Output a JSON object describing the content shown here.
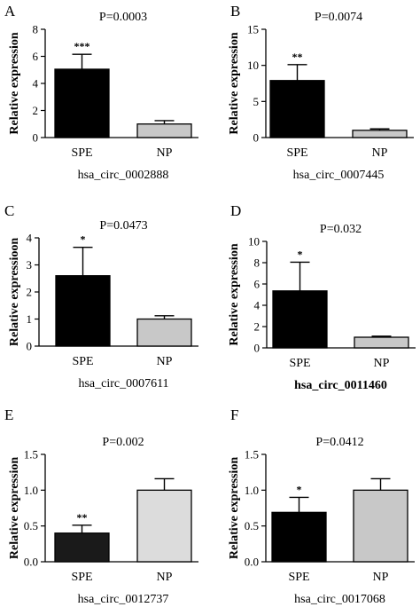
{
  "chart_data": [
    {
      "type": "bar",
      "panel": "A",
      "title": "P=0.0003",
      "ylabel": "Relative expression",
      "xlabel": "hsa_circ_0002888",
      "categories": [
        "SPE",
        "NP"
      ],
      "values": [
        5.05,
        1.0
      ],
      "errors": [
        1.1,
        0.25
      ],
      "significance": [
        "***",
        ""
      ],
      "ylim": [
        0,
        8
      ],
      "yticks": [
        "0",
        "2",
        "4",
        "6",
        "8"
      ],
      "bar_colors": [
        "#000000",
        "#c8c8c8"
      ]
    },
    {
      "type": "bar",
      "panel": "B",
      "title": "P=0.0074",
      "ylabel": "Relative expression",
      "xlabel": "hsa_circ_0007445",
      "categories": [
        "SPE",
        "NP"
      ],
      "values": [
        7.9,
        1.0
      ],
      "errors": [
        2.2,
        0.2
      ],
      "significance": [
        "**",
        ""
      ],
      "ylim": [
        0,
        15
      ],
      "yticks": [
        "0",
        "5",
        "10",
        "15"
      ],
      "bar_colors": [
        "#000000",
        "#c8c8c8"
      ]
    },
    {
      "type": "bar",
      "panel": "C",
      "title": "P=0.0473",
      "ylabel": "Relative expressioon",
      "xlabel": "hsa_circ_0007611",
      "categories": [
        "SPE",
        "NP"
      ],
      "values": [
        2.6,
        1.0
      ],
      "errors": [
        1.05,
        0.12
      ],
      "significance": [
        "*",
        ""
      ],
      "ylim": [
        0,
        4
      ],
      "yticks": [
        "0",
        "1",
        "2",
        "3",
        "4"
      ],
      "bar_colors": [
        "#000000",
        "#c8c8c8"
      ]
    },
    {
      "type": "bar",
      "panel": "D",
      "title": "P=0.032",
      "ylabel": "Relative expression",
      "xlabel": "hsa_circ_0011460",
      "categories": [
        "SPE",
        "NP"
      ],
      "values": [
        5.35,
        1.0
      ],
      "errors": [
        2.7,
        0.1
      ],
      "significance": [
        "*",
        ""
      ],
      "ylim": [
        0,
        10
      ],
      "yticks": [
        "0",
        "2",
        "4",
        "6",
        "8",
        "10"
      ],
      "bar_colors": [
        "#000000",
        "#c8c8c8"
      ]
    },
    {
      "type": "bar",
      "panel": "E",
      "title": "P=0.002",
      "ylabel": "Relative expression",
      "xlabel": "hsa_circ_0012737",
      "categories": [
        "SPE",
        "NP"
      ],
      "values": [
        0.4,
        1.0
      ],
      "errors": [
        0.11,
        0.16
      ],
      "significance": [
        "**",
        ""
      ],
      "ylim": [
        0,
        1.5
      ],
      "yticks": [
        "0.0",
        "0.5",
        "1.0",
        "1.5"
      ],
      "bar_colors": [
        "#1a1a1a",
        "#dcdcdc"
      ]
    },
    {
      "type": "bar",
      "panel": "F",
      "title": "P=0.0412",
      "ylabel": "Relative expression",
      "xlabel": "hsa_circ_0017068",
      "categories": [
        "SPE",
        "NP"
      ],
      "values": [
        0.69,
        1.0
      ],
      "errors": [
        0.21,
        0.16
      ],
      "significance": [
        "*",
        ""
      ],
      "ylim": [
        0,
        1.5
      ],
      "yticks": [
        "0.0",
        "0.5",
        "1.0",
        "1.5"
      ],
      "bar_colors": [
        "#000000",
        "#c8c8c8"
      ]
    }
  ]
}
